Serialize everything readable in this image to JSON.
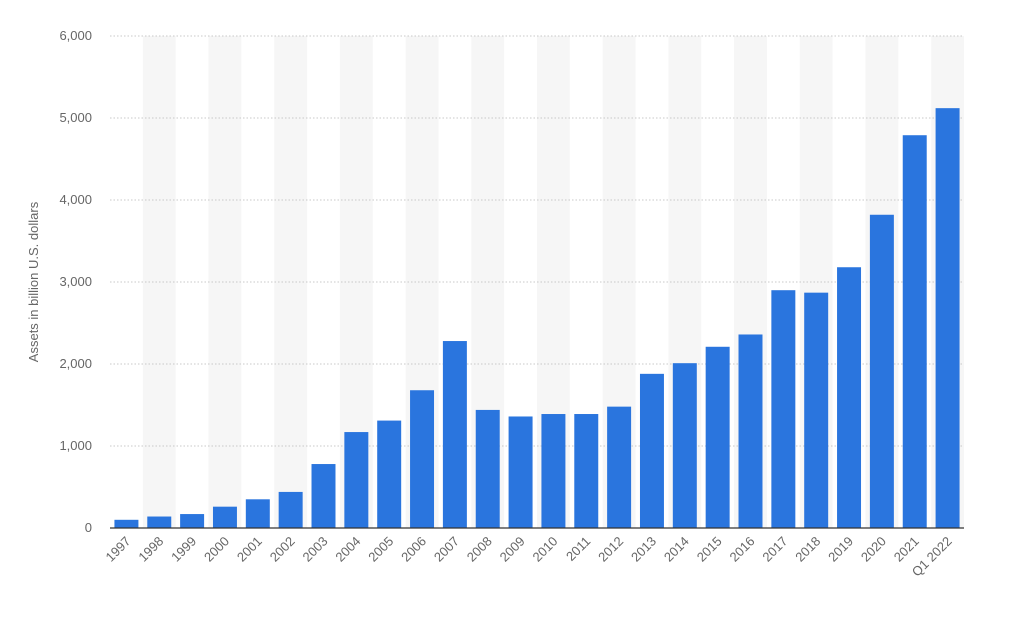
{
  "chart_data": {
    "type": "bar",
    "ylabel": "Assets in billion U.S. dollars",
    "xlabel": "",
    "ylim": [
      0,
      6000
    ],
    "yticks": [
      0,
      1000,
      2000,
      3000,
      4000,
      5000,
      6000
    ],
    "ytick_labels": [
      "0",
      "1,000",
      "2,000",
      "3,000",
      "4,000",
      "5,000",
      "6,000"
    ],
    "grid": "horizontal dotted",
    "categories": [
      "1997",
      "1998",
      "1999",
      "2000",
      "2001",
      "2002",
      "2003",
      "2004",
      "2005",
      "2006",
      "2007",
      "2008",
      "2009",
      "2010",
      "2011",
      "2012",
      "2013",
      "2014",
      "2015",
      "2016",
      "2017",
      "2018",
      "2019",
      "2020",
      "2021",
      "Q1 2022"
    ],
    "values": [
      100,
      140,
      170,
      260,
      350,
      440,
      780,
      1170,
      1310,
      1680,
      2280,
      1440,
      1360,
      1390,
      1390,
      1480,
      1880,
      2010,
      2210,
      2360,
      2900,
      2870,
      3180,
      3820,
      4790,
      5120
    ],
    "colors": {
      "bar": "#2A75DE",
      "band": "#F6F6F6",
      "grid": "#C8C8C8",
      "axis": "#333333",
      "text": "#666666"
    }
  }
}
